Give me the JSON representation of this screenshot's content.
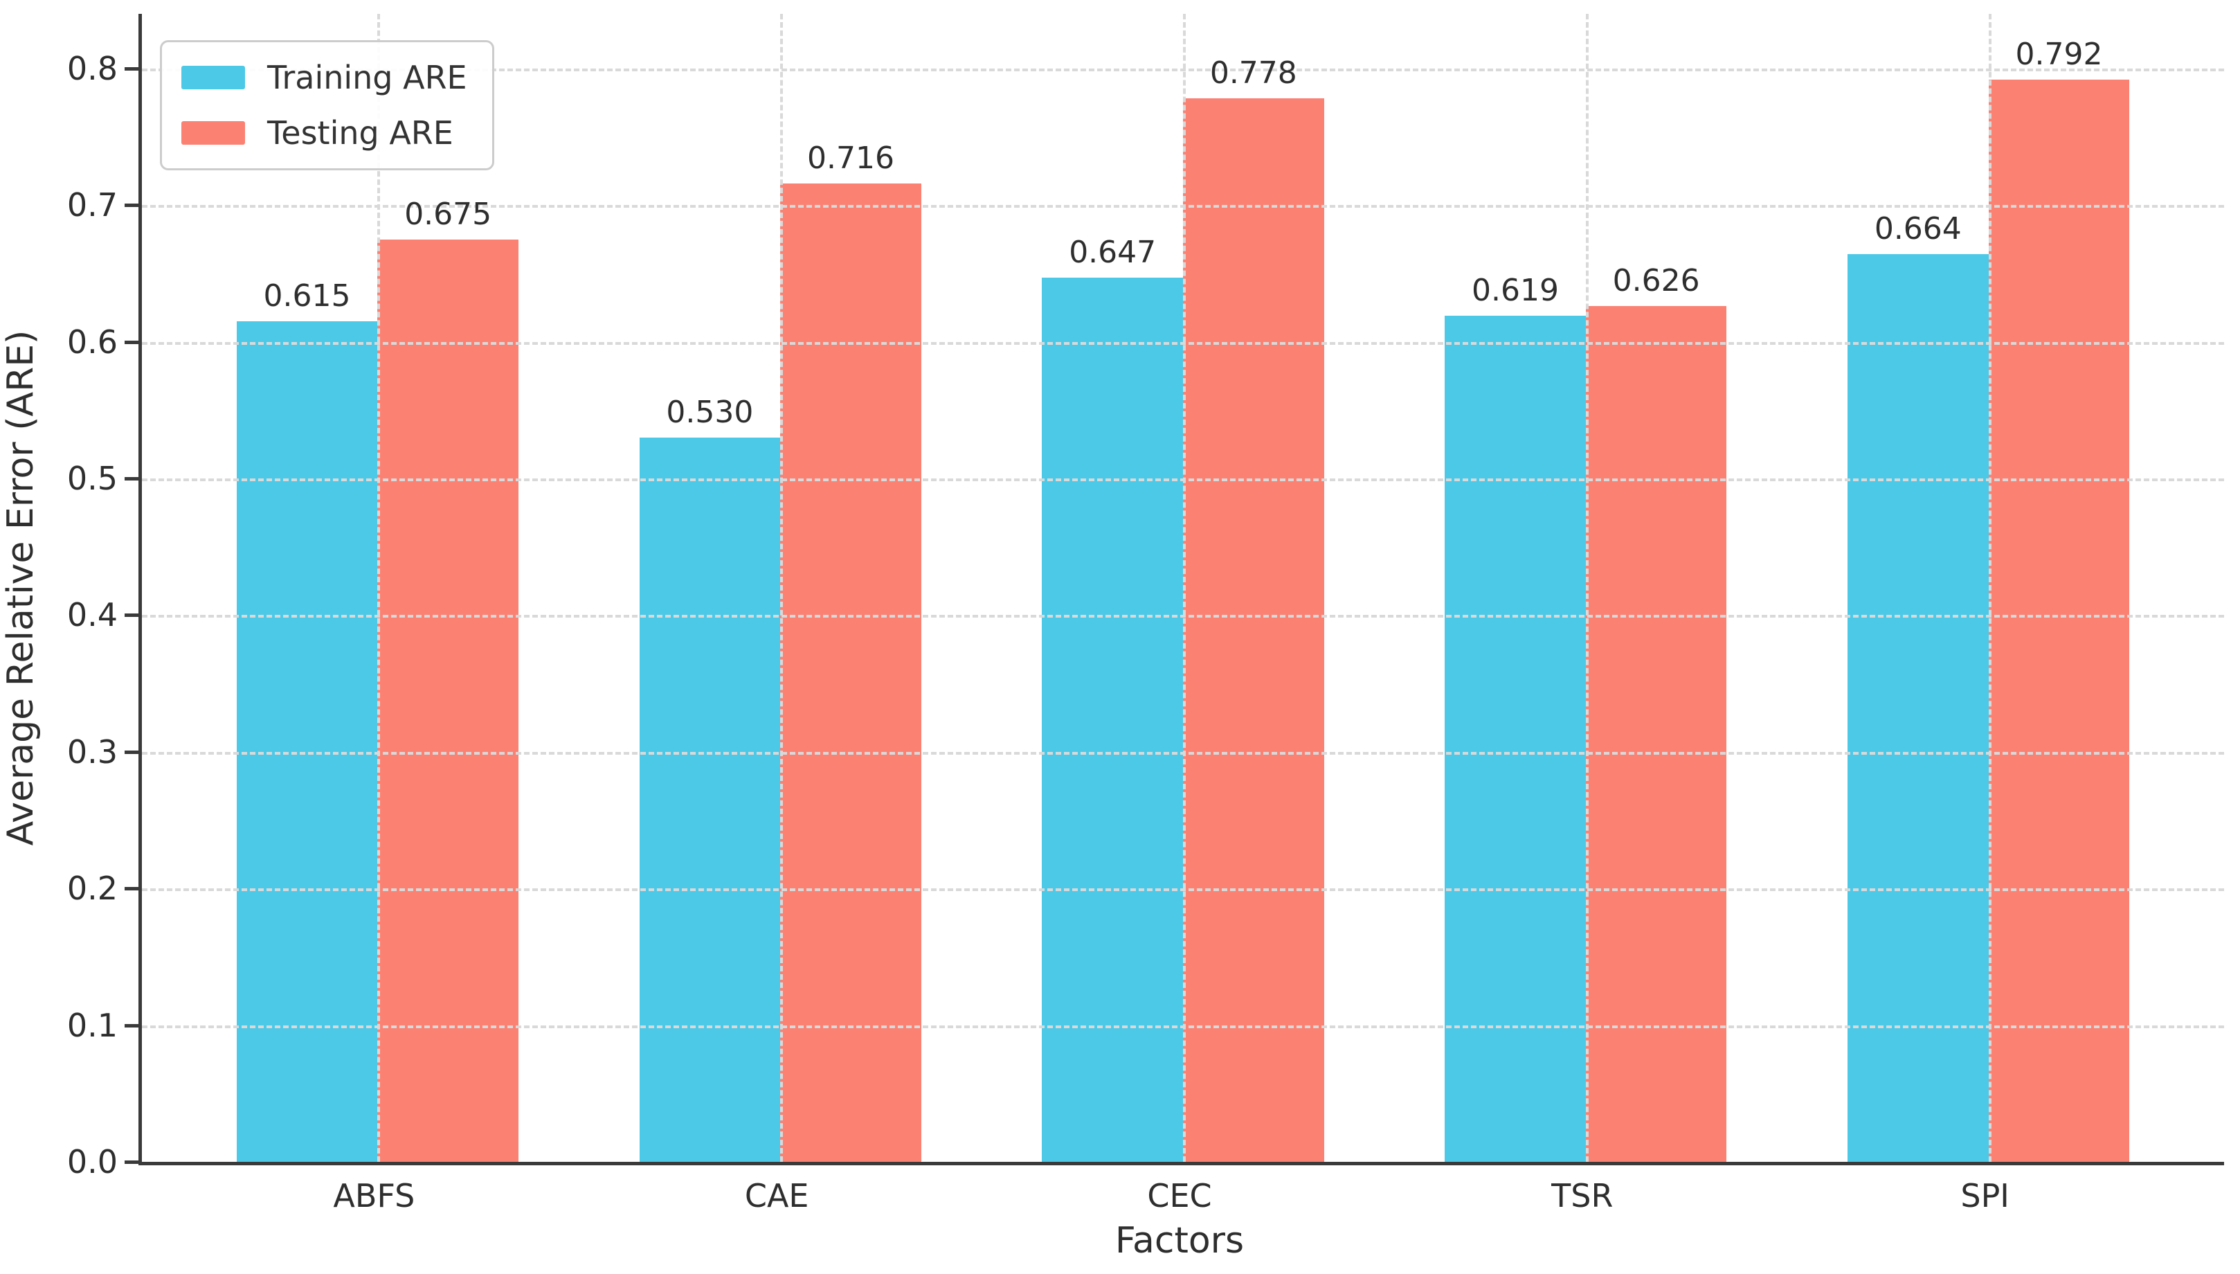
{
  "figure": {
    "background": "#ffffff"
  },
  "chart_data": {
    "type": "bar",
    "title": "",
    "xlabel": "Factors",
    "ylabel": "Average Relative Error (ARE)",
    "categories": [
      "ABFS",
      "CAE",
      "CEC",
      "TSR",
      "SPI"
    ],
    "series": [
      {
        "name": "Training ARE",
        "color": "#4DC9E8",
        "values": [
          0.615,
          0.53,
          0.647,
          0.619,
          0.664
        ]
      },
      {
        "name": "Testing ARE",
        "color": "#FB8173",
        "values": [
          0.675,
          0.716,
          0.778,
          0.626,
          0.792
        ]
      }
    ],
    "value_labels": [
      [
        "0.615",
        "0.530",
        "0.647",
        "0.619",
        "0.664"
      ],
      [
        "0.675",
        "0.716",
        "0.778",
        "0.626",
        "0.792"
      ]
    ],
    "yticks": [
      "0.0",
      "0.1",
      "0.2",
      "0.3",
      "0.4",
      "0.5",
      "0.6",
      "0.7",
      "0.8"
    ],
    "ylim": [
      0,
      0.84
    ],
    "xlim": [
      -0.585,
      4.585
    ],
    "bar_width_units": 0.35,
    "grid": "dashed horizontal and vertical, drawn over bars",
    "legend_position": "upper left",
    "axis_color": "#3a3a3a",
    "grid_color": "#d9d9d9",
    "text_color": "#2e2e2e"
  }
}
